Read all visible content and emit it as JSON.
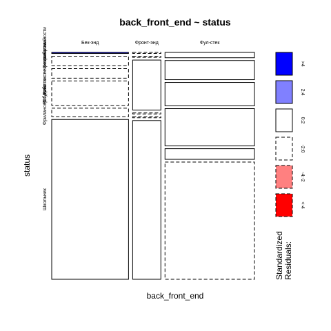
{
  "chart_data": {
    "type": "mosaic",
    "title": "back_front_end ~ status",
    "xlabel": "back_front_end",
    "ylabel": "status",
    "x_categories": [
      "Бек-энд",
      "Фронт-энд",
      "Фул-стек"
    ],
    "y_categories": [
      "Безработный",
      "Работаю не по специальности",
      "Работаю по специальности",
      "Студент",
      "Фрилансер",
      "Школьник"
    ],
    "y_axis_labels": [
      "Безработный",
      "Работаю не по специальности",
      "Работаю по специальности",
      "Студент",
      "Фрилансер",
      "Школьник"
    ],
    "column_proportions": [
      0.395,
      0.145,
      0.46
    ],
    "cell_proportions": [
      [
        0.005,
        0.045,
        0.045,
        0.115,
        0.04,
        0.75
      ],
      [
        0.005,
        0.005,
        0.235,
        0.005,
        0.005,
        0.745
      ],
      [
        0.025,
        0.09,
        0.11,
        0.175,
        0.05,
        0.55
      ]
    ],
    "residual_class": [
      [
        ">4",
        "-2:0",
        "-2:0",
        "-2:0",
        "-2:0",
        "0:2"
      ],
      [
        "-2:0",
        "-2:0",
        "0:2",
        "-2:0",
        "-2:0",
        "0:2"
      ],
      [
        "0:2",
        "0:2",
        "0:2",
        "0:2",
        "0:2",
        "-2:0"
      ]
    ],
    "legend": {
      "title_line1": "Standardized",
      "title_line2": "Residuals:",
      "items": [
        {
          "label": ">4",
          "color": "#0000ff",
          "dashed": false
        },
        {
          "label": "2:4",
          "color": "#8080ff",
          "dashed": false
        },
        {
          "label": "0:2",
          "color": "#ffffff",
          "dashed": false
        },
        {
          "label": "-2:0",
          "color": "#ffffff",
          "dashed": true
        },
        {
          "label": "-4:-2",
          "color": "#ff8080",
          "dashed": true
        },
        {
          "label": "<-4",
          "color": "#ff0000",
          "dashed": true
        }
      ]
    }
  }
}
